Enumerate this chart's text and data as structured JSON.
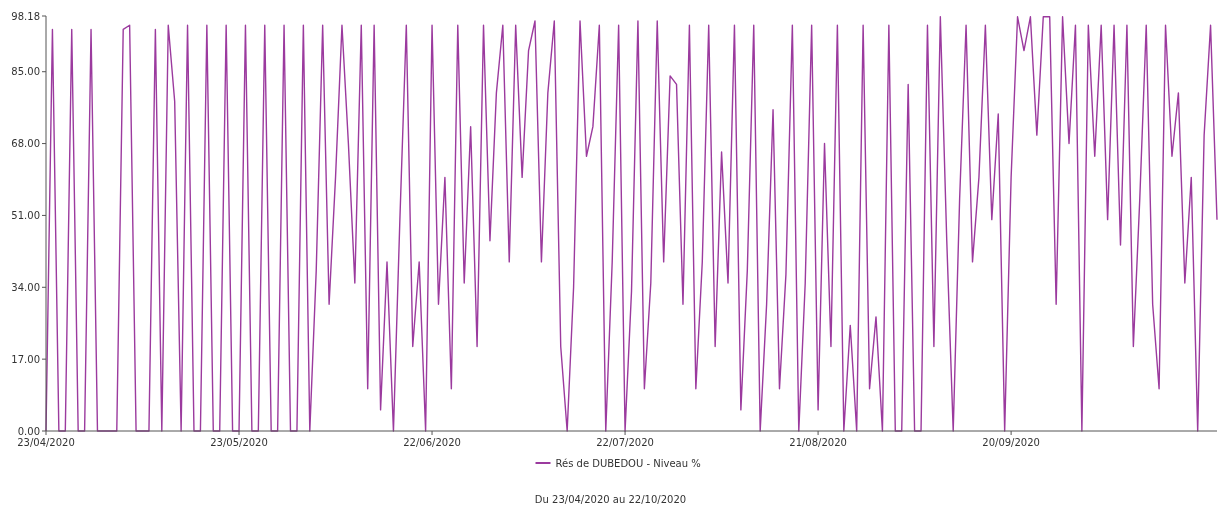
{
  "chart_data": {
    "type": "line",
    "legend": "bottom",
    "annotations": [
      "Du 23/04/2020 au 22/10/2020"
    ],
    "xlim": [
      "2020-04-23",
      "2020-10-22"
    ],
    "xticks": [
      {
        "value": "2020-04-23",
        "label": "23/04/2020"
      },
      {
        "value": "2020-05-23",
        "label": "23/05/2020"
      },
      {
        "value": "2020-06-22",
        "label": "22/06/2020"
      },
      {
        "value": "2020-07-22",
        "label": "22/07/2020"
      },
      {
        "value": "2020-08-21",
        "label": "21/08/2020"
      },
      {
        "value": "2020-09-20",
        "label": "20/09/2020"
      }
    ],
    "ylim": [
      0,
      98.18
    ],
    "yticks": [
      {
        "value": 0,
        "label": "0.00"
      },
      {
        "value": 17,
        "label": "17.00"
      },
      {
        "value": 34,
        "label": "34.00"
      },
      {
        "value": 51,
        "label": "51.00"
      },
      {
        "value": 68,
        "label": "68.00"
      },
      {
        "value": 85,
        "label": "85.00"
      },
      {
        "value": 98.18,
        "label": "98.18"
      }
    ],
    "series": [
      {
        "name": "Rés de DUBEDOU - Niveau %",
        "color": "#9b3a9e",
        "x": [
          "2020-04-23",
          "2020-04-24",
          "2020-04-25",
          "2020-04-26",
          "2020-04-27",
          "2020-04-28",
          "2020-04-29",
          "2020-04-30",
          "2020-05-01",
          "2020-05-02",
          "2020-05-03",
          "2020-05-04",
          "2020-05-05",
          "2020-05-06",
          "2020-05-07",
          "2020-05-08",
          "2020-05-09",
          "2020-05-10",
          "2020-05-11",
          "2020-05-12",
          "2020-05-13",
          "2020-05-14",
          "2020-05-15",
          "2020-05-16",
          "2020-05-17",
          "2020-05-18",
          "2020-05-19",
          "2020-05-20",
          "2020-05-21",
          "2020-05-22",
          "2020-05-23",
          "2020-05-24",
          "2020-05-25",
          "2020-05-26",
          "2020-05-27",
          "2020-05-28",
          "2020-05-29",
          "2020-05-30",
          "2020-05-31",
          "2020-06-01",
          "2020-06-02",
          "2020-06-03",
          "2020-06-04",
          "2020-06-05",
          "2020-06-06",
          "2020-06-07",
          "2020-06-08",
          "2020-06-09",
          "2020-06-10",
          "2020-06-11",
          "2020-06-12",
          "2020-06-13",
          "2020-06-14",
          "2020-06-15",
          "2020-06-16",
          "2020-06-17",
          "2020-06-18",
          "2020-06-19",
          "2020-06-20",
          "2020-06-21",
          "2020-06-22",
          "2020-06-23",
          "2020-06-24",
          "2020-06-25",
          "2020-06-26",
          "2020-06-27",
          "2020-06-28",
          "2020-06-29",
          "2020-06-30",
          "2020-07-01",
          "2020-07-02",
          "2020-07-03",
          "2020-07-04",
          "2020-07-05",
          "2020-07-06",
          "2020-07-07",
          "2020-07-08",
          "2020-07-09",
          "2020-07-10",
          "2020-07-11",
          "2020-07-12",
          "2020-07-13",
          "2020-07-14",
          "2020-07-15",
          "2020-07-16",
          "2020-07-17",
          "2020-07-18",
          "2020-07-19",
          "2020-07-20",
          "2020-07-21",
          "2020-07-22",
          "2020-07-23",
          "2020-07-24",
          "2020-07-25",
          "2020-07-26",
          "2020-07-27",
          "2020-07-28",
          "2020-07-29",
          "2020-07-30",
          "2020-07-31",
          "2020-08-01",
          "2020-08-02",
          "2020-08-03",
          "2020-08-04",
          "2020-08-05",
          "2020-08-06",
          "2020-08-07",
          "2020-08-08",
          "2020-08-09",
          "2020-08-10",
          "2020-08-11",
          "2020-08-12",
          "2020-08-13",
          "2020-08-14",
          "2020-08-15",
          "2020-08-16",
          "2020-08-17",
          "2020-08-18",
          "2020-08-19",
          "2020-08-20",
          "2020-08-21",
          "2020-08-22",
          "2020-08-23",
          "2020-08-24",
          "2020-08-25",
          "2020-08-26",
          "2020-08-27",
          "2020-08-28",
          "2020-08-29",
          "2020-08-30",
          "2020-08-31",
          "2020-09-01",
          "2020-09-02",
          "2020-09-03",
          "2020-09-04",
          "2020-09-05",
          "2020-09-06",
          "2020-09-07",
          "2020-09-08",
          "2020-09-09",
          "2020-09-10",
          "2020-09-11",
          "2020-09-12",
          "2020-09-13",
          "2020-09-14",
          "2020-09-15",
          "2020-09-16",
          "2020-09-17",
          "2020-09-18",
          "2020-09-19",
          "2020-09-20",
          "2020-09-21",
          "2020-09-22",
          "2020-09-23",
          "2020-09-24",
          "2020-09-25",
          "2020-09-26",
          "2020-09-27",
          "2020-09-28",
          "2020-09-29",
          "2020-09-30",
          "2020-10-01",
          "2020-10-02",
          "2020-10-03",
          "2020-10-04",
          "2020-10-05",
          "2020-10-06",
          "2020-10-07",
          "2020-10-08",
          "2020-10-09",
          "2020-10-10",
          "2020-10-11",
          "2020-10-12",
          "2020-10-13",
          "2020-10-14",
          "2020-10-15",
          "2020-10-16",
          "2020-10-17",
          "2020-10-18",
          "2020-10-19",
          "2020-10-20",
          "2020-10-21",
          "2020-10-22"
        ],
        "values": [
          0,
          95,
          0,
          0,
          95,
          0,
          0,
          95,
          0,
          0,
          0,
          0,
          95,
          96,
          0,
          0,
          0,
          95,
          0,
          96,
          78,
          0,
          96,
          0,
          0,
          96,
          0,
          0,
          96,
          0,
          0,
          96,
          0,
          0,
          96,
          0,
          0,
          96,
          0,
          0,
          96,
          0,
          38,
          96,
          30,
          60,
          96,
          68,
          35,
          96,
          10,
          96,
          5,
          40,
          0,
          50,
          96,
          20,
          40,
          0,
          96,
          30,
          60,
          10,
          96,
          35,
          72,
          20,
          96,
          45,
          80,
          96,
          40,
          96,
          60,
          90,
          97,
          40,
          80,
          97,
          20,
          0,
          34,
          97,
          65,
          72,
          96,
          0,
          40,
          96,
          0,
          33,
          97,
          10,
          35,
          97,
          40,
          84,
          82,
          30,
          96,
          10,
          40,
          96,
          20,
          66,
          35,
          96,
          5,
          38,
          96,
          0,
          30,
          76,
          10,
          37,
          96,
          0,
          35,
          96,
          5,
          68,
          20,
          96,
          0,
          25,
          0,
          96,
          10,
          27,
          0,
          96,
          0,
          0,
          82,
          0,
          0,
          96,
          20,
          98,
          45,
          0,
          55,
          96,
          40,
          60,
          96,
          50,
          75,
          0,
          60,
          98,
          90,
          98,
          70,
          98,
          98,
          30,
          98,
          68,
          96,
          0,
          96,
          65,
          96,
          50,
          96,
          44,
          96,
          20,
          55,
          96,
          30,
          10,
          96,
          65,
          80,
          35,
          60,
          0,
          70,
          96,
          50
        ]
      }
    ]
  }
}
